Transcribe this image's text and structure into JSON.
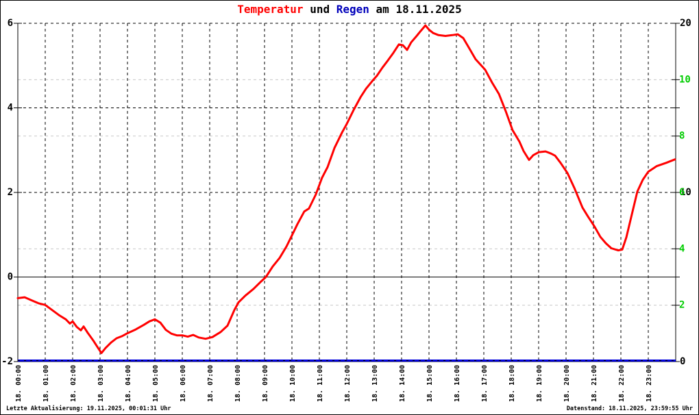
{
  "title": {
    "part_temperature": "Temperatur",
    "part_und": " und ",
    "part_rain": "Regen",
    "part_date": " am 18.11.2025"
  },
  "footer": {
    "left": "Letzte Aktualisierung: 19.11.2025, 00:01:31 Uhr",
    "right": "Datenstand: 18.11.2025, 23:59:55 Uhr"
  },
  "colors": {
    "temperature_line": "#ff0000",
    "rain_line": "#0000dd",
    "title_temperature": "#ff0000",
    "title_rain": "#0000bb",
    "green_scale": "#00cc00",
    "minor_grid": "#c8c8c8",
    "axis": "#000000",
    "background": "#ffffff"
  },
  "chart_data": {
    "type": "line",
    "title": "Temperatur und Regen am 18.11.2025",
    "xlabel": "",
    "ylabel_left": "Temperatur",
    "ylabel_right": "Regen",
    "x_axis": {
      "unit": "hour of 18.11.2025",
      "range_hours": [
        0,
        24
      ],
      "labels": [
        "18. 00:00",
        "18. 01:00",
        "18. 02:00",
        "18. 03:00",
        "18. 04:00",
        "18. 05:00",
        "18. 06:00",
        "18. 07:00",
        "18. 08:00",
        "18. 09:00",
        "18. 10:00",
        "18. 11:00",
        "18. 12:00",
        "18. 13:00",
        "18. 14:00",
        "18. 15:00",
        "18. 16:00",
        "18. 17:00",
        "18. 18:00",
        "18. 19:00",
        "18. 20:00",
        "18. 21:00",
        "18. 22:00",
        "18. 23:00"
      ]
    },
    "y_axis_left": {
      "range": [
        -2,
        6
      ],
      "tick_values": [
        6,
        4,
        2,
        0,
        -2
      ],
      "labels": [
        "6",
        "4",
        "2",
        "0",
        "-2"
      ],
      "color": "#000000"
    },
    "y_axis_right_rain": {
      "range": [
        0,
        20
      ],
      "tick_values": [
        20,
        15,
        10,
        5,
        0
      ],
      "label_values": [
        20,
        10,
        0
      ],
      "labels": [
        "20",
        "10",
        "0"
      ],
      "color": "#000000"
    },
    "y_axis_right_green": {
      "range": [
        0,
        12
      ],
      "tick_values": [
        10,
        8,
        6,
        4,
        2
      ],
      "labels": [
        "10",
        "8",
        "6",
        "4",
        "2"
      ],
      "color": "#00cc00"
    },
    "grid": {
      "vertical_dashed_black_at_each_hour": true,
      "horizontal_dashed_black_temp_values": [
        6,
        4,
        2
      ],
      "horizontal_solid_black_temp_values": [
        0
      ],
      "horizontal_minor_gray_green_values": [
        10,
        8,
        4,
        2
      ]
    },
    "series": [
      {
        "name": "Temperatur",
        "axis": "left",
        "color": "#ff0000",
        "points_hour_degC": [
          [
            0,
            -0.5
          ],
          [
            0.25,
            -0.48
          ],
          [
            0.5,
            -0.55
          ],
          [
            0.75,
            -0.62
          ],
          [
            1,
            -0.66
          ],
          [
            1.25,
            -0.78
          ],
          [
            1.5,
            -0.9
          ],
          [
            1.75,
            -1.0
          ],
          [
            1.9,
            -1.1
          ],
          [
            2.0,
            -1.05
          ],
          [
            2.15,
            -1.18
          ],
          [
            2.3,
            -1.26
          ],
          [
            2.4,
            -1.17
          ],
          [
            2.55,
            -1.32
          ],
          [
            2.75,
            -1.5
          ],
          [
            2.9,
            -1.65
          ],
          [
            3.05,
            -1.8
          ],
          [
            3.2,
            -1.68
          ],
          [
            3.4,
            -1.55
          ],
          [
            3.6,
            -1.45
          ],
          [
            3.8,
            -1.4
          ],
          [
            4.0,
            -1.33
          ],
          [
            4.3,
            -1.24
          ],
          [
            4.6,
            -1.13
          ],
          [
            4.8,
            -1.05
          ],
          [
            5.0,
            -1.0
          ],
          [
            5.2,
            -1.08
          ],
          [
            5.4,
            -1.25
          ],
          [
            5.6,
            -1.34
          ],
          [
            5.8,
            -1.38
          ],
          [
            6.0,
            -1.38
          ],
          [
            6.2,
            -1.41
          ],
          [
            6.4,
            -1.37
          ],
          [
            6.6,
            -1.43
          ],
          [
            6.85,
            -1.46
          ],
          [
            7.1,
            -1.42
          ],
          [
            7.4,
            -1.3
          ],
          [
            7.65,
            -1.15
          ],
          [
            7.9,
            -0.78
          ],
          [
            8.05,
            -0.6
          ],
          [
            8.3,
            -0.44
          ],
          [
            8.6,
            -0.28
          ],
          [
            8.85,
            -0.12
          ],
          [
            9.05,
            0.0
          ],
          [
            9.3,
            0.25
          ],
          [
            9.55,
            0.45
          ],
          [
            9.8,
            0.72
          ],
          [
            10.05,
            1.05
          ],
          [
            10.2,
            1.25
          ],
          [
            10.45,
            1.55
          ],
          [
            10.62,
            1.62
          ],
          [
            10.87,
            1.95
          ],
          [
            11.1,
            2.35
          ],
          [
            11.3,
            2.6
          ],
          [
            11.55,
            3.05
          ],
          [
            11.83,
            3.42
          ],
          [
            12.0,
            3.62
          ],
          [
            12.25,
            3.95
          ],
          [
            12.5,
            4.25
          ],
          [
            12.7,
            4.45
          ],
          [
            12.95,
            4.65
          ],
          [
            13.1,
            4.76
          ],
          [
            13.3,
            4.95
          ],
          [
            13.5,
            5.12
          ],
          [
            13.7,
            5.3
          ],
          [
            13.9,
            5.5
          ],
          [
            14.05,
            5.48
          ],
          [
            14.2,
            5.37
          ],
          [
            14.35,
            5.55
          ],
          [
            14.55,
            5.7
          ],
          [
            14.7,
            5.82
          ],
          [
            14.87,
            5.95
          ],
          [
            15.0,
            5.85
          ],
          [
            15.15,
            5.77
          ],
          [
            15.35,
            5.72
          ],
          [
            15.6,
            5.7
          ],
          [
            15.85,
            5.72
          ],
          [
            16.05,
            5.74
          ],
          [
            16.25,
            5.65
          ],
          [
            16.45,
            5.43
          ],
          [
            16.7,
            5.15
          ],
          [
            17.05,
            4.9
          ],
          [
            17.3,
            4.6
          ],
          [
            17.55,
            4.33
          ],
          [
            17.8,
            3.92
          ],
          [
            18.05,
            3.47
          ],
          [
            18.3,
            3.2
          ],
          [
            18.45,
            2.98
          ],
          [
            18.65,
            2.77
          ],
          [
            18.8,
            2.88
          ],
          [
            19.0,
            2.95
          ],
          [
            19.25,
            2.97
          ],
          [
            19.45,
            2.92
          ],
          [
            19.6,
            2.87
          ],
          [
            19.8,
            2.7
          ],
          [
            20.05,
            2.46
          ],
          [
            20.3,
            2.11
          ],
          [
            20.6,
            1.64
          ],
          [
            20.8,
            1.43
          ],
          [
            21.05,
            1.18
          ],
          [
            21.25,
            0.95
          ],
          [
            21.45,
            0.8
          ],
          [
            21.65,
            0.68
          ],
          [
            21.9,
            0.63
          ],
          [
            22.05,
            0.65
          ],
          [
            22.2,
            0.94
          ],
          [
            22.4,
            1.48
          ],
          [
            22.6,
            2.02
          ],
          [
            22.8,
            2.3
          ],
          [
            23.0,
            2.49
          ],
          [
            23.3,
            2.62
          ],
          [
            23.65,
            2.7
          ],
          [
            23.97,
            2.78
          ]
        ]
      },
      {
        "name": "Regen",
        "axis": "right",
        "color": "#0000dd",
        "constant_value_mm": 0,
        "points_hour_mm": [
          [
            0,
            0
          ],
          [
            24,
            0
          ]
        ]
      }
    ]
  }
}
